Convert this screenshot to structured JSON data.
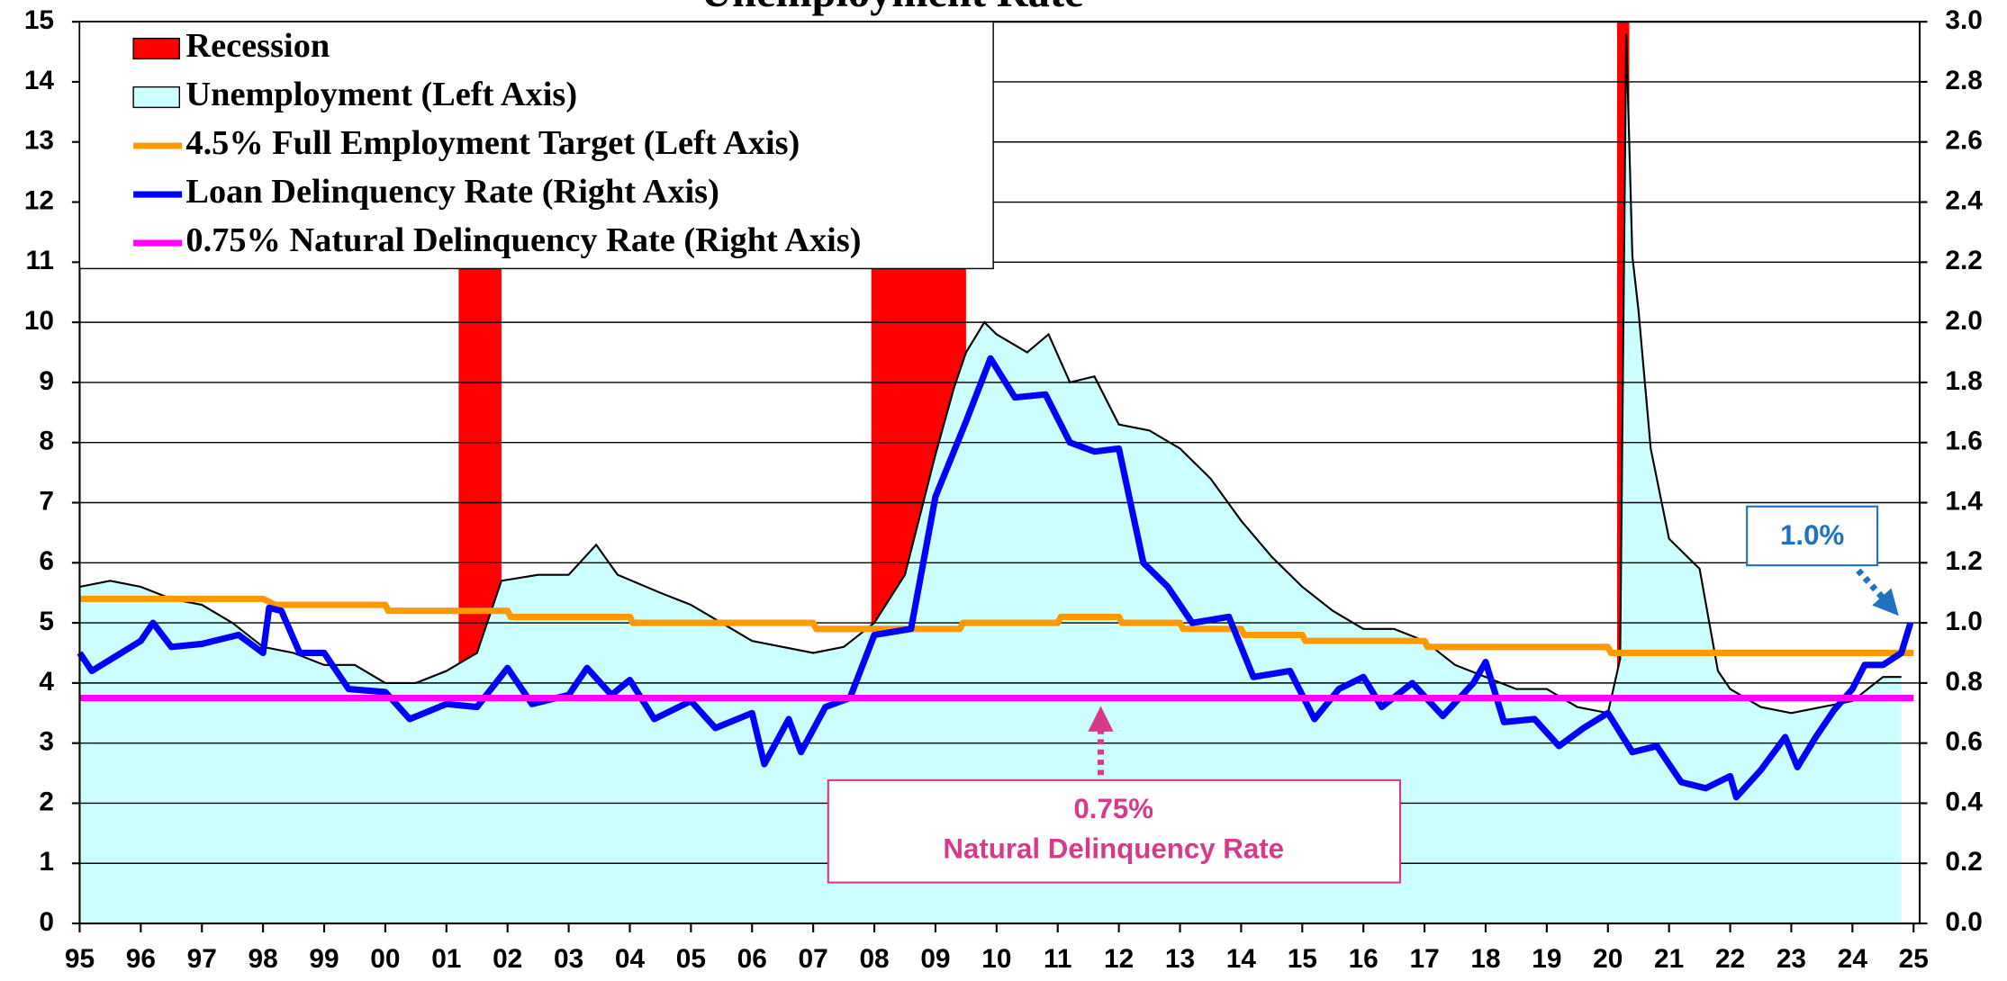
{
  "chart_data": {
    "type": "combo",
    "title": "Unemployment Rate",
    "xlim": [
      1995,
      2025.1
    ],
    "xticks": [
      {
        "value": 1995,
        "label": "95"
      },
      {
        "value": 1996,
        "label": "96"
      },
      {
        "value": 1997,
        "label": "97"
      },
      {
        "value": 1998,
        "label": "98"
      },
      {
        "value": 1999,
        "label": "99"
      },
      {
        "value": 2000,
        "label": "00"
      },
      {
        "value": 2001,
        "label": "01"
      },
      {
        "value": 2002,
        "label": "02"
      },
      {
        "value": 2003,
        "label": "03"
      },
      {
        "value": 2004,
        "label": "04"
      },
      {
        "value": 2005,
        "label": "05"
      },
      {
        "value": 2006,
        "label": "06"
      },
      {
        "value": 2007,
        "label": "07"
      },
      {
        "value": 2008,
        "label": "08"
      },
      {
        "value": 2009,
        "label": "09"
      },
      {
        "value": 2010,
        "label": "10"
      },
      {
        "value": 2011,
        "label": "11"
      },
      {
        "value": 2012,
        "label": "12"
      },
      {
        "value": 2013,
        "label": "13"
      },
      {
        "value": 2014,
        "label": "14"
      },
      {
        "value": 2015,
        "label": "15"
      },
      {
        "value": 2016,
        "label": "16"
      },
      {
        "value": 2017,
        "label": "17"
      },
      {
        "value": 2018,
        "label": "18"
      },
      {
        "value": 2019,
        "label": "19"
      },
      {
        "value": 2020,
        "label": "20"
      },
      {
        "value": 2021,
        "label": "21"
      },
      {
        "value": 2022,
        "label": "22"
      },
      {
        "value": 2023,
        "label": "23"
      },
      {
        "value": 2024,
        "label": "24"
      },
      {
        "value": 2025,
        "label": "25"
      }
    ],
    "ylim": [
      0,
      15
    ],
    "yticks": [
      0,
      1,
      2,
      3,
      4,
      5,
      6,
      7,
      8,
      9,
      10,
      11,
      12,
      13,
      14,
      15
    ],
    "y2lim": [
      0,
      3
    ],
    "y2ticks": [
      {
        "value": 0,
        "label": "0.0"
      },
      0.2,
      0.4,
      0.6,
      0.8,
      {
        "value": 1,
        "label": "1.0"
      },
      1.2,
      1.4,
      1.6,
      1.8,
      {
        "value": 2,
        "label": "2.0"
      },
      2.2,
      2.4,
      2.6,
      2.8,
      {
        "value": 3,
        "label": "3.0"
      }
    ],
    "grid": true,
    "legend": "upper left",
    "series": [
      {
        "name": "Recession",
        "type": "span",
        "color": "#ff0000",
        "spans": [
          [
            2001.2,
            2001.9
          ],
          [
            2007.95,
            2009.5
          ],
          [
            2020.15,
            2020.35
          ]
        ]
      },
      {
        "name": "Unemployment (Left Axis)",
        "type": "area",
        "color": "#ccffff",
        "axis": "y",
        "x": [
          1995.0,
          1995.5,
          1996.0,
          1996.5,
          1997.0,
          1997.5,
          1998.0,
          1998.5,
          1999.0,
          1999.5,
          2000.0,
          2000.5,
          2001.0,
          2001.5,
          2001.9,
          2002.5,
          2003.0,
          2003.45,
          2003.8,
          2004.5,
          2005.0,
          2005.5,
          2006.0,
          2006.5,
          2007.0,
          2007.5,
          2008.0,
          2008.5,
          2009.0,
          2009.3,
          2009.5,
          2009.8,
          2010.0,
          2010.5,
          2010.85,
          2011.2,
          2011.6,
          2012.0,
          2012.5,
          2013.0,
          2013.5,
          2014.0,
          2014.5,
          2015.0,
          2015.5,
          2016.0,
          2016.5,
          2017.0,
          2017.5,
          2018.0,
          2018.5,
          2019.0,
          2019.5,
          2020.0,
          2020.2,
          2020.3,
          2020.4,
          2020.5,
          2020.7,
          2021.0,
          2021.5,
          2021.8,
          2022.0,
          2022.5,
          2023.0,
          2023.5,
          2024.0,
          2024.5,
          2024.8
        ],
        "values": [
          5.6,
          5.7,
          5.6,
          5.4,
          5.3,
          5.0,
          4.6,
          4.5,
          4.3,
          4.3,
          4.0,
          4.0,
          4.2,
          4.5,
          5.7,
          5.8,
          5.8,
          6.3,
          5.8,
          5.5,
          5.3,
          5.0,
          4.7,
          4.6,
          4.5,
          4.6,
          5.0,
          5.8,
          7.8,
          8.9,
          9.5,
          10.0,
          9.8,
          9.5,
          9.8,
          9.0,
          9.1,
          8.3,
          8.2,
          7.9,
          7.4,
          6.7,
          6.1,
          5.6,
          5.2,
          4.9,
          4.9,
          4.7,
          4.3,
          4.1,
          3.9,
          3.9,
          3.6,
          3.5,
          4.4,
          14.8,
          11.1,
          10.2,
          7.9,
          6.4,
          5.9,
          4.2,
          3.9,
          3.6,
          3.5,
          3.6,
          3.7,
          4.1,
          4.1
        ]
      },
      {
        "name": "4.5% Full Employment Target (Left Axis)",
        "type": "line",
        "color": "#ff9900",
        "axis": "y",
        "x": [
          1995,
          1998,
          1998.2,
          2000,
          2000.05,
          2002,
          2002.05,
          2004,
          2004.05,
          2007,
          2007.05,
          2009.4,
          2009.45,
          2011,
          2011.05,
          2012,
          2012.05,
          2013,
          2013.05,
          2014,
          2014.05,
          2015,
          2015.05,
          2017,
          2017.05,
          2020,
          2020.05,
          2025
        ],
        "values": [
          5.4,
          5.4,
          5.3,
          5.3,
          5.2,
          5.2,
          5.1,
          5.1,
          5.0,
          5.0,
          4.9,
          4.9,
          5.0,
          5.0,
          5.1,
          5.1,
          5.0,
          5.0,
          4.9,
          4.9,
          4.8,
          4.8,
          4.7,
          4.7,
          4.6,
          4.6,
          4.5,
          4.5
        ]
      },
      {
        "name": "Loan Delinquency Rate (Right Axis)",
        "type": "line",
        "color": "#0000ff",
        "axis": "y2",
        "x": [
          1995,
          1995.2,
          1996,
          1996.2,
          1996.5,
          1997,
          1997.6,
          1998,
          1998.1,
          1998.3,
          1998.6,
          1999,
          1999.4,
          2000,
          2000.4,
          2001,
          2001.5,
          2002,
          2002.4,
          2003,
          2003.3,
          2003.7,
          2004,
          2004.4,
          2005,
          2005.4,
          2006,
          2006.2,
          2006.6,
          2006.8,
          2007.2,
          2007.6,
          2008.0,
          2008.6,
          2009.0,
          2009.5,
          2009.9,
          2010.3,
          2010.8,
          2011.2,
          2011.6,
          2012.0,
          2012.4,
          2012.8,
          2013.2,
          2013.8,
          2014.2,
          2014.8,
          2015.2,
          2015.6,
          2016.0,
          2016.3,
          2016.8,
          2017.3,
          2017.8,
          2018.0,
          2018.3,
          2018.8,
          2019.2,
          2019.6,
          2020.0,
          2020.4,
          2020.8,
          2021.2,
          2021.6,
          2022.0,
          2022.1,
          2022.5,
          2022.9,
          2023.1,
          2023.4,
          2023.7,
          2024.0,
          2024.2,
          2024.5,
          2024.8,
          2024.95
        ],
        "values": [
          0.9,
          0.84,
          0.94,
          1.0,
          0.92,
          0.93,
          0.96,
          0.9,
          1.05,
          1.04,
          0.9,
          0.9,
          0.78,
          0.77,
          0.68,
          0.73,
          0.72,
          0.85,
          0.73,
          0.76,
          0.85,
          0.76,
          0.81,
          0.68,
          0.74,
          0.65,
          0.7,
          0.53,
          0.68,
          0.57,
          0.72,
          0.75,
          0.96,
          0.98,
          1.42,
          1.67,
          1.88,
          1.75,
          1.76,
          1.6,
          1.57,
          1.58,
          1.2,
          1.12,
          1.0,
          1.02,
          0.82,
          0.84,
          0.68,
          0.78,
          0.82,
          0.72,
          0.8,
          0.69,
          0.8,
          0.87,
          0.67,
          0.68,
          0.59,
          0.65,
          0.7,
          0.57,
          0.59,
          0.47,
          0.45,
          0.49,
          0.42,
          0.51,
          0.62,
          0.52,
          0.62,
          0.71,
          0.78,
          0.86,
          0.86,
          0.9,
          1.0
        ]
      },
      {
        "name": "0.75% Natural Delinquency Rate (Right Axis)",
        "type": "line",
        "color": "#ff00ff",
        "axis": "y2",
        "x": [
          1995,
          2025
        ],
        "values": [
          0.75,
          0.75
        ]
      }
    ],
    "annotations": [
      {
        "lines": [
          "1.0%"
        ],
        "color": "#1f72c0"
      },
      {
        "lines": [
          "0.75%",
          "Natural Delinquency Rate"
        ],
        "color": "#d63a8c"
      }
    ]
  }
}
